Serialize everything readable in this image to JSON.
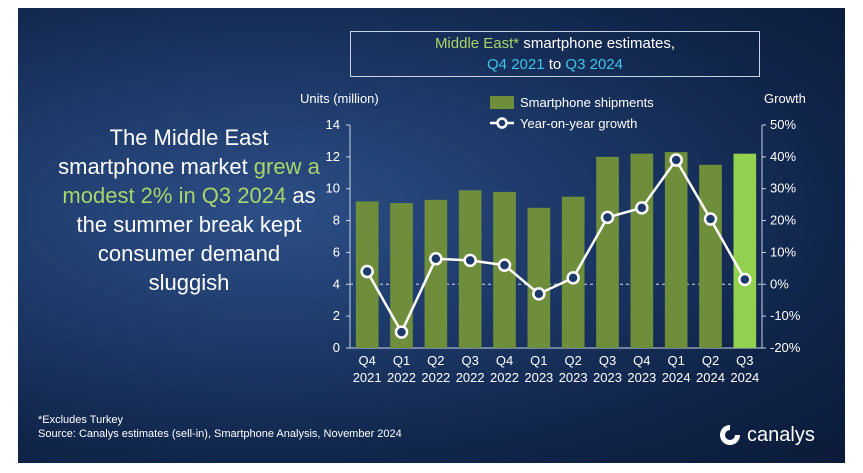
{
  "title": {
    "line1_region": "Middle East*",
    "line1_rest": " smartphone estimates,",
    "line2_start": "Q4 2021",
    "line2_mid": " to ",
    "line2_end": "Q3 2024"
  },
  "headline": {
    "part1": "The Middle East smartphone market ",
    "highlight": "grew a modest 2% in Q3 2024",
    "part2": " as the summer break kept consumer demand sluggish"
  },
  "footnote": {
    "line1": "*Excludes Turkey",
    "line2": "Source: Canalys estimates (sell-in), Smartphone Analysis, November 2024"
  },
  "logo": {
    "text": "canalys",
    "icon": "canalys-logo-icon"
  },
  "colors": {
    "bar": "#6e8e3c",
    "bar_highlight": "#92d050",
    "line": "#ffffff",
    "title_green": "#a8d46a",
    "title_cyan": "#3fc3e8"
  },
  "chart_data": {
    "type": "bar",
    "categories": [
      "Q4 2021",
      "Q1 2022",
      "Q2 2022",
      "Q3 2022",
      "Q4 2022",
      "Q1 2023",
      "Q2 2023",
      "Q3 2023",
      "Q4 2023",
      "Q1 2024",
      "Q2 2024",
      "Q3 2024"
    ],
    "category_lines": [
      [
        "Q4",
        "2021"
      ],
      [
        "Q1",
        "2022"
      ],
      [
        "Q2",
        "2022"
      ],
      [
        "Q3",
        "2022"
      ],
      [
        "Q4",
        "2022"
      ],
      [
        "Q1",
        "2023"
      ],
      [
        "Q2",
        "2023"
      ],
      [
        "Q3",
        "2023"
      ],
      [
        "Q4",
        "2023"
      ],
      [
        "Q1",
        "2024"
      ],
      [
        "Q2",
        "2024"
      ],
      [
        "Q3",
        "2024"
      ]
    ],
    "series": [
      {
        "name": "Smartphone shipments",
        "kind": "bar",
        "axis": "left",
        "values": [
          9.2,
          9.1,
          9.3,
          9.9,
          9.8,
          8.8,
          9.5,
          12.0,
          12.2,
          12.3,
          11.5,
          12.2
        ]
      },
      {
        "name": "Year-on-year growth",
        "kind": "line",
        "axis": "right",
        "values": [
          4,
          -15,
          8,
          7.5,
          6,
          -3,
          2,
          21,
          24,
          39,
          20.5,
          1.5
        ]
      }
    ],
    "ylabel_left": "Units (million)",
    "ylabel_right": "Growth",
    "ylim_left": [
      0,
      14
    ],
    "yticks_left": [
      "0",
      "2",
      "4",
      "6",
      "8",
      "10",
      "12",
      "14"
    ],
    "ylim_right": [
      -20,
      50
    ],
    "yticks_right": [
      "-20%",
      "-10%",
      "0%",
      "10%",
      "20%",
      "30%",
      "40%",
      "50%"
    ],
    "highlight_index": 11,
    "legend_position": "top-center",
    "zero_line": "dashed"
  }
}
